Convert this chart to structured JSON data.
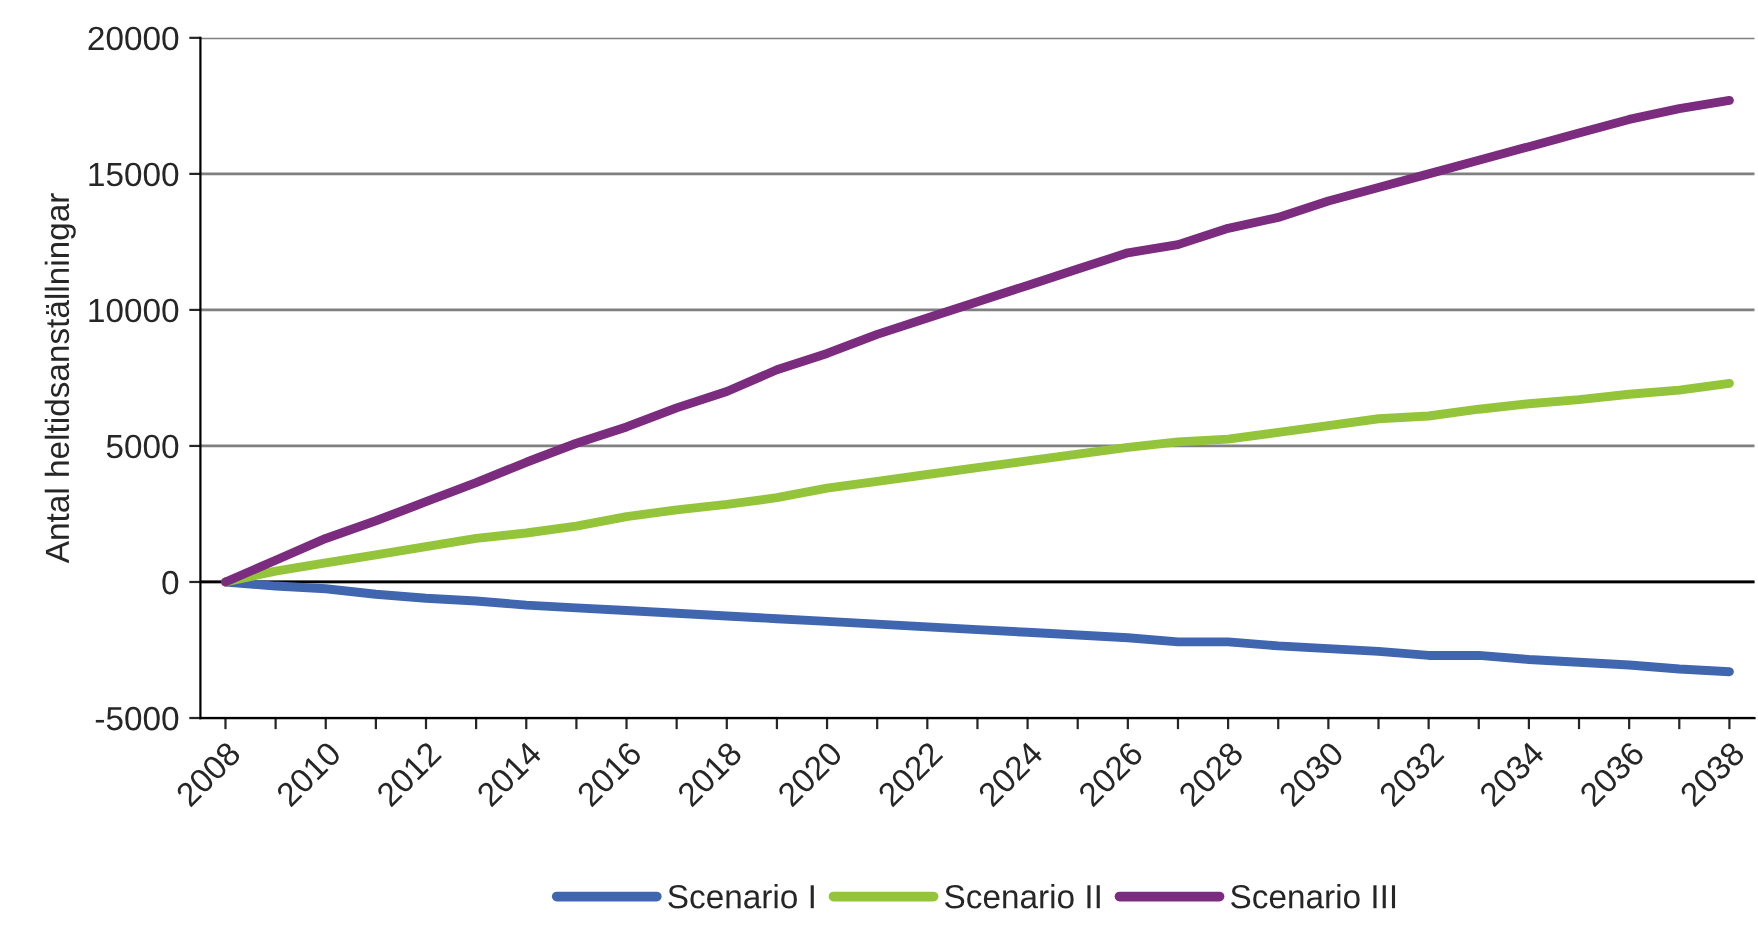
{
  "chart_data": {
    "type": "line",
    "ylabel": "Antal heltidsanställningar",
    "categories": [
      "2008",
      null,
      "2010",
      null,
      "2012",
      null,
      "2014",
      null,
      "2016",
      null,
      "2018",
      null,
      "2020",
      null,
      "2022",
      null,
      "2024",
      null,
      "2026",
      null,
      "2028",
      null,
      "2030",
      null,
      "2032",
      null,
      "2034",
      null,
      "2036",
      null,
      "2038"
    ],
    "series": [
      {
        "name": "Scenario I",
        "color": "#4066b0",
        "values": [
          0,
          -150,
          -250,
          -450,
          -600,
          -700,
          -850,
          -950,
          -1050,
          -1150,
          -1250,
          -1350,
          -1450,
          -1550,
          -1650,
          -1750,
          -1850,
          -1950,
          -2050,
          -2200,
          -2200,
          -2350,
          -2450,
          -2550,
          -2700,
          -2700,
          -2850,
          -2950,
          -3050,
          -3200,
          -3300
        ]
      },
      {
        "name": "Scenario II",
        "color": "#94c43a",
        "values": [
          0,
          400,
          700,
          1000,
          1300,
          1600,
          1800,
          2050,
          2400,
          2650,
          2850,
          3100,
          3450,
          3700,
          3950,
          4200,
          4450,
          4700,
          4950,
          5150,
          5250,
          5500,
          5750,
          6000,
          6100,
          6350,
          6550,
          6700,
          6900,
          7050,
          7300
        ]
      },
      {
        "name": "Scenario III",
        "color": "#7b2c7e",
        "values": [
          0,
          800,
          1600,
          2250,
          2950,
          3650,
          4400,
          5100,
          5700,
          6400,
          7000,
          7800,
          8400,
          9100,
          9700,
          10300,
          10900,
          11500,
          12100,
          12400,
          13000,
          13400,
          14000,
          14500,
          15000,
          15500,
          16000,
          16500,
          17000,
          17400,
          17700
        ]
      }
    ],
    "ylim": [
      -5000,
      20000
    ],
    "yticks": [
      -5000,
      0,
      5000,
      10000,
      15000,
      20000
    ],
    "grid": "y",
    "legend": "bottom",
    "marker": "none",
    "line_style": "solid"
  }
}
